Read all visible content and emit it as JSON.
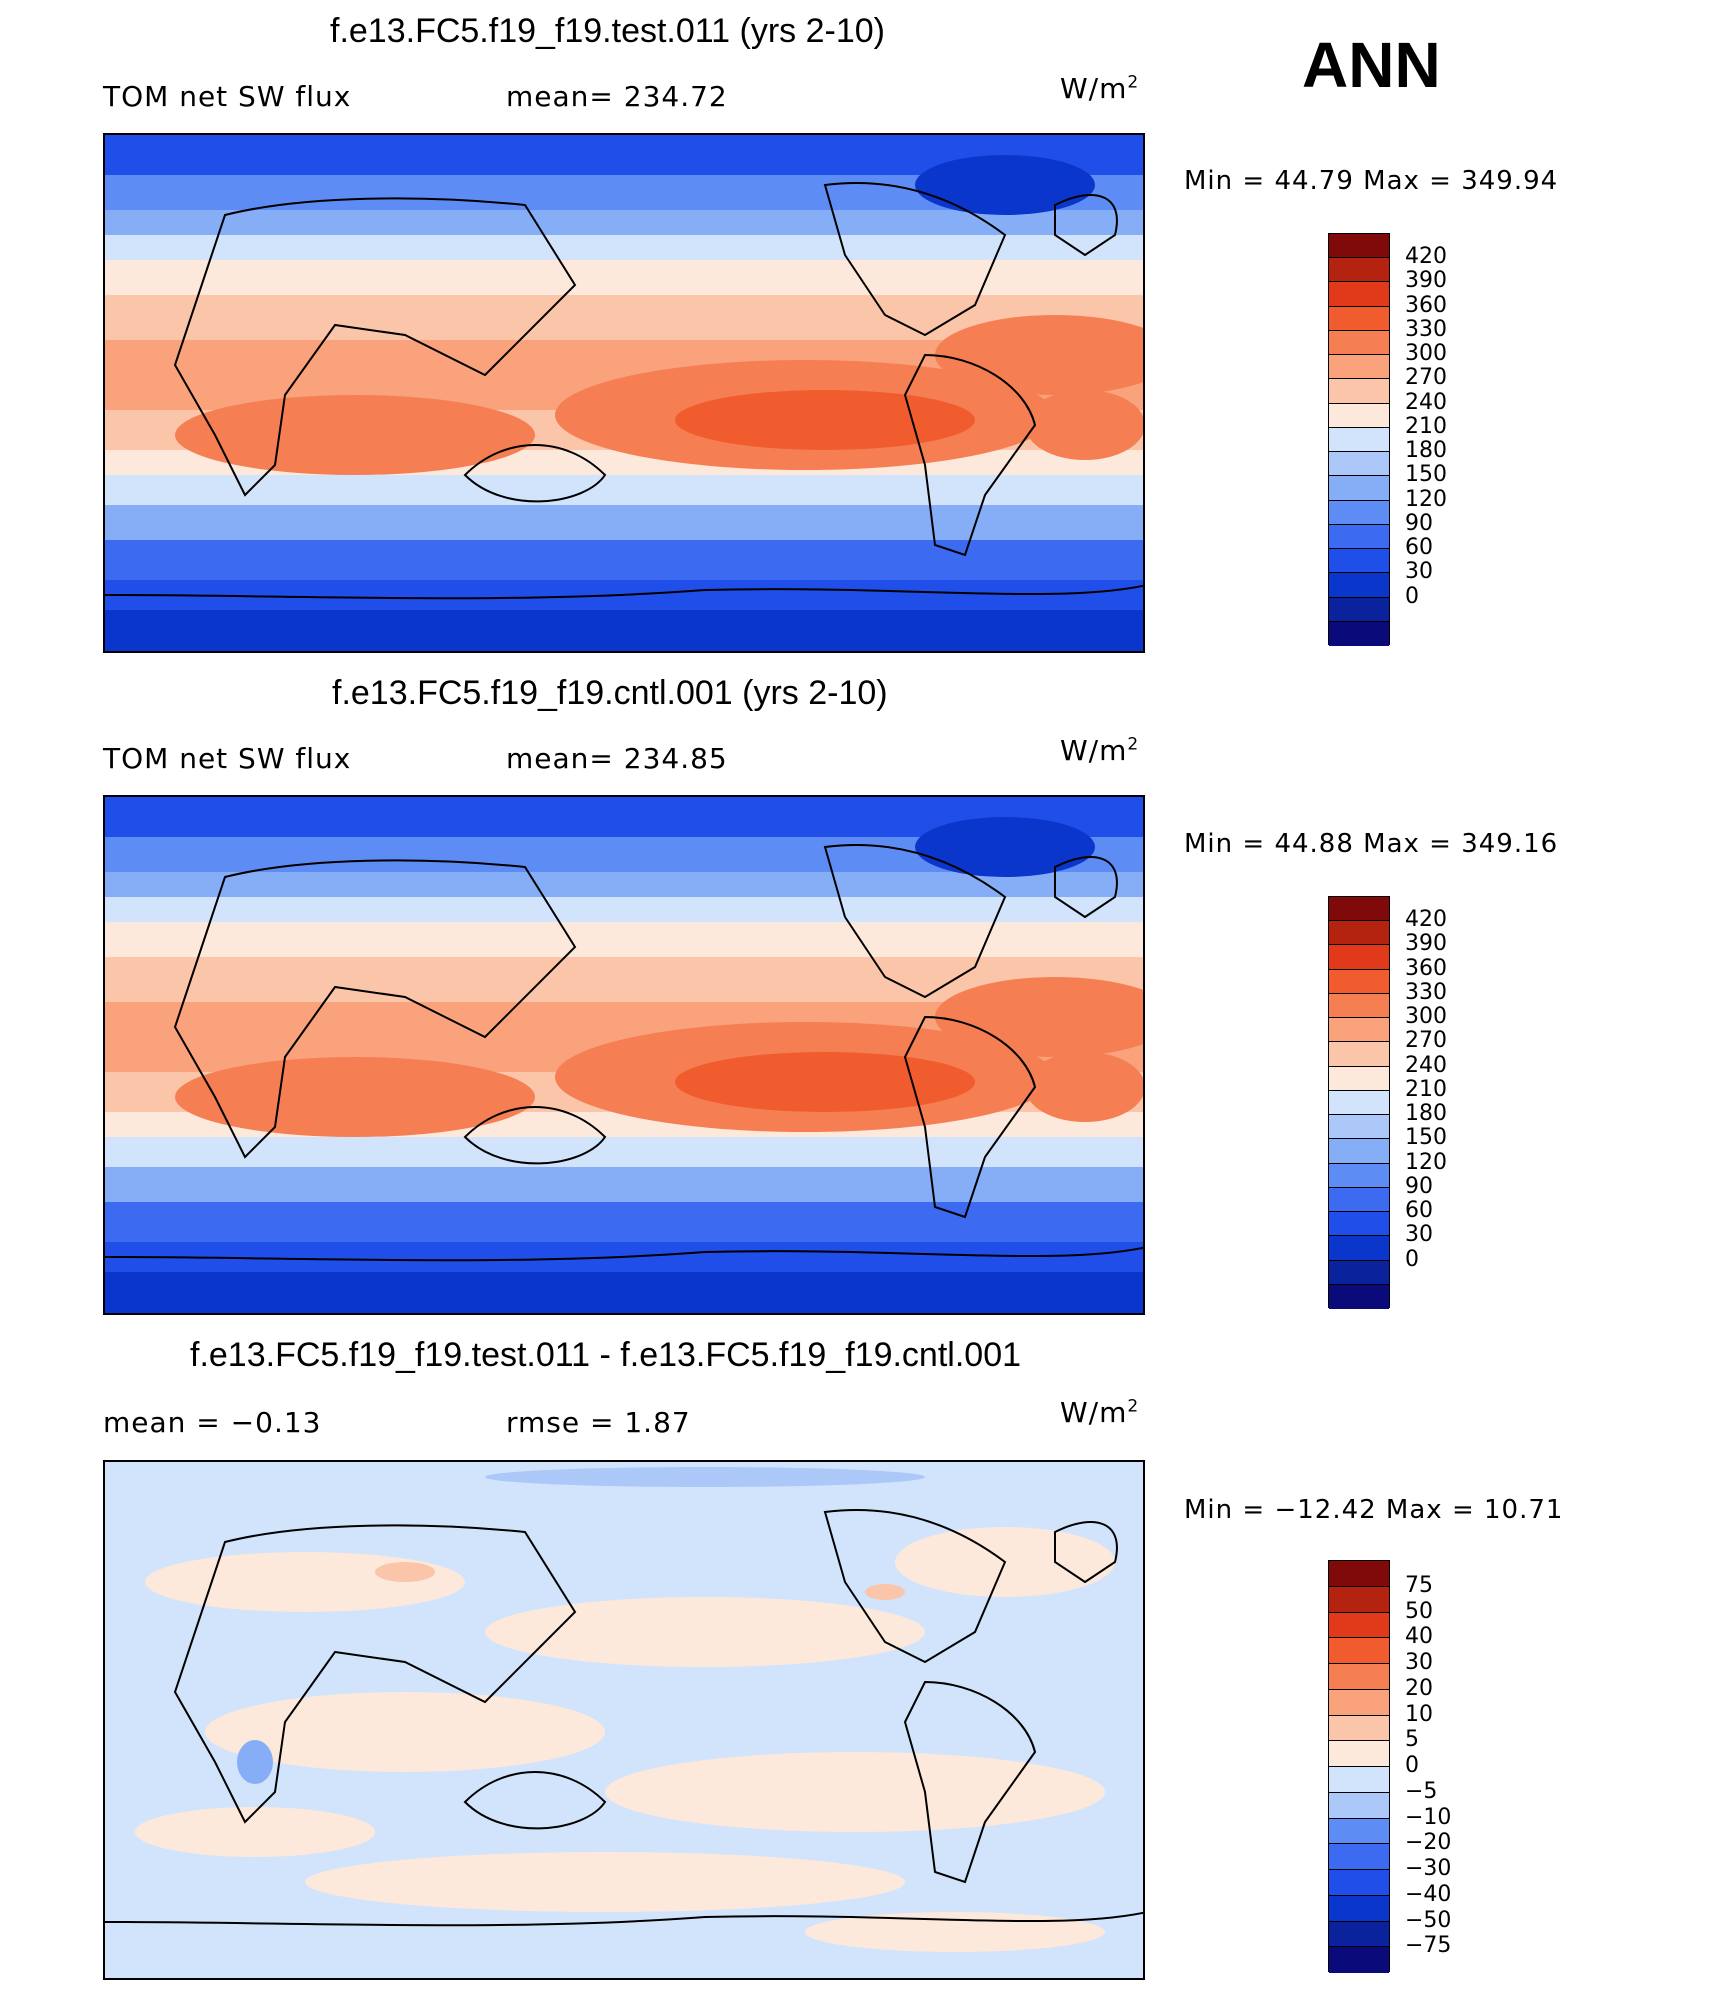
{
  "season": "ANN",
  "colors": {
    "abs": [
      "#0a0a7a",
      "#0a239c",
      "#0a36cc",
      "#1f4ee8",
      "#3c6af0",
      "#5d8cf4",
      "#86aef6",
      "#abc8f8",
      "#d2e4fb",
      "#fde8dc",
      "#fbc5aa",
      "#f9a27c",
      "#f57e53",
      "#f15c2e",
      "#e03a1a",
      "#b42210",
      "#800a0a"
    ],
    "diff": [
      "#0a0a7a",
      "#0a239c",
      "#0a36cc",
      "#1f4ee8",
      "#3c6af0",
      "#5d8cf4",
      "#abc8f8",
      "#d2e4fb",
      "#fde8dc",
      "#fbc5aa",
      "#f9a27c",
      "#f57e53",
      "#f15c2e",
      "#e03a1a",
      "#b42210",
      "#800a0a"
    ]
  },
  "panels": [
    {
      "title": "f.e13.FC5.f19_f19.test.011 (yrs 2-10)",
      "left_label": "TOM net SW flux",
      "right_label": "mean= 234.72",
      "units_base": "W/m",
      "units_exp": "2",
      "minmax": "Min =   44.79 Max = 349.94",
      "levels": [
        "420",
        "390",
        "360",
        "330",
        "300",
        "270",
        "240",
        "210",
        "180",
        "150",
        "120",
        "90",
        "60",
        "30",
        "0"
      ]
    },
    {
      "title": "f.e13.FC5.f19_f19.cntl.001 (yrs 2-10)",
      "left_label": "TOM net SW flux",
      "right_label": "mean= 234.85",
      "units_base": "W/m",
      "units_exp": "2",
      "minmax": "Min =   44.88 Max = 349.16",
      "levels": [
        "420",
        "390",
        "360",
        "330",
        "300",
        "270",
        "240",
        "210",
        "180",
        "150",
        "120",
        "90",
        "60",
        "30",
        "0"
      ]
    },
    {
      "title": "f.e13.FC5.f19_f19.test.011 - f.e13.FC5.f19_f19.cntl.001",
      "left_label": "mean =   −0.13",
      "right_label": "rmse =    1.87",
      "units_base": "W/m",
      "units_exp": "2",
      "minmax": "Min = −12.42 Max =   10.71",
      "levels": [
        "75",
        "50",
        "40",
        "30",
        "20",
        "10",
        "5",
        "0",
        "−5",
        "−10",
        "−20",
        "−30",
        "−40",
        "−50",
        "−75"
      ]
    }
  ]
}
